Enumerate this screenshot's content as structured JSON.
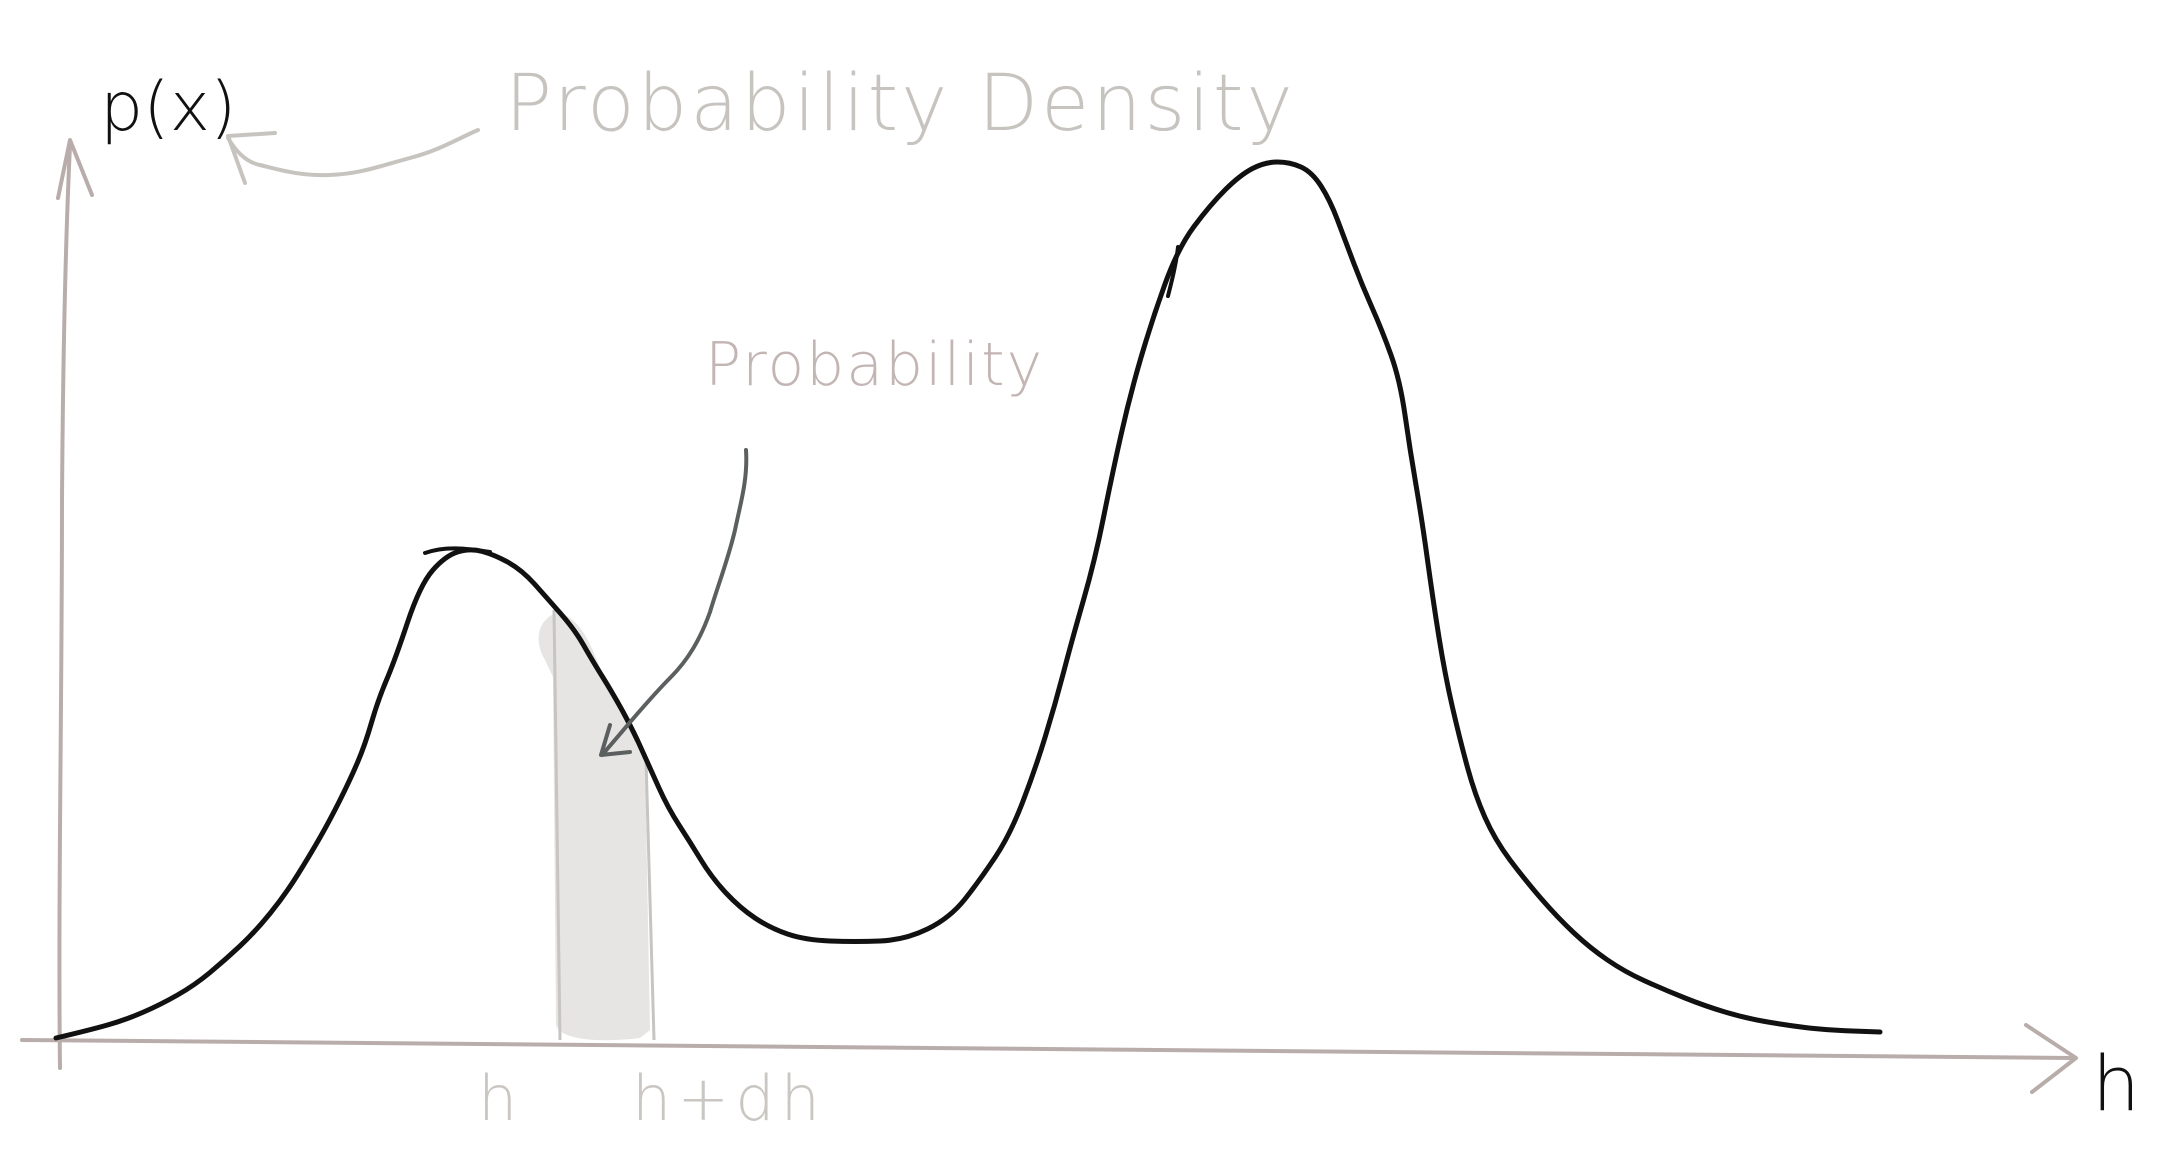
{
  "chart_data": {
    "type": "area",
    "title": "Probability Density",
    "ylabel": "p(x)",
    "xlabel": "h",
    "annotation": "Probability",
    "x_ticks": [
      "h",
      "h+dh"
    ],
    "grid": false,
    "series": [
      {
        "shape": "bimodal density curve with a smaller left peak and a taller right peak",
        "peaks": 2
      }
    ],
    "shaded_interval": [
      "h",
      "h+dh"
    ]
  },
  "colors": {
    "curve": "#111111",
    "axes": "#b9adab",
    "title": "#c7c3bf",
    "callout": "#c2b5b3",
    "shade": "#e6e5e3",
    "callout_arrow": "#5b5f60",
    "tick_labels": "#cac6c2"
  }
}
